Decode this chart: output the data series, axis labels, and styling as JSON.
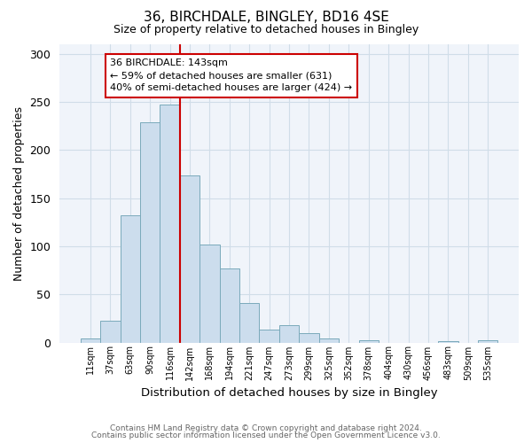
{
  "title1": "36, BIRCHDALE, BINGLEY, BD16 4SE",
  "title2": "Size of property relative to detached houses in Bingley",
  "xlabel": "Distribution of detached houses by size in Bingley",
  "ylabel": "Number of detached properties",
  "bar_labels": [
    "11sqm",
    "37sqm",
    "63sqm",
    "90sqm",
    "116sqm",
    "142sqm",
    "168sqm",
    "194sqm",
    "221sqm",
    "247sqm",
    "273sqm",
    "299sqm",
    "325sqm",
    "352sqm",
    "378sqm",
    "404sqm",
    "430sqm",
    "456sqm",
    "483sqm",
    "509sqm",
    "535sqm"
  ],
  "bar_values": [
    4,
    23,
    132,
    229,
    247,
    174,
    102,
    77,
    41,
    13,
    18,
    10,
    4,
    0,
    2,
    0,
    0,
    0,
    1,
    0,
    2
  ],
  "bar_color": "#ccdded",
  "bar_edge_color": "#7aaabb",
  "ylim": [
    0,
    310
  ],
  "yticks": [
    0,
    50,
    100,
    150,
    200,
    250,
    300
  ],
  "vline_index": 5,
  "vline_color": "#cc0000",
  "annotation_text": "36 BIRCHDALE: 143sqm\n← 59% of detached houses are smaller (631)\n40% of semi-detached houses are larger (424) →",
  "annotation_box_color": "#ffffff",
  "annotation_box_edge_color": "#cc0000",
  "footer1": "Contains HM Land Registry data © Crown copyright and database right 2024.",
  "footer2": "Contains public sector information licensed under the Open Government Licence v3.0.",
  "bg_color": "#ffffff",
  "plot_bg_color": "#f0f4fa",
  "grid_color": "#d0dde8"
}
